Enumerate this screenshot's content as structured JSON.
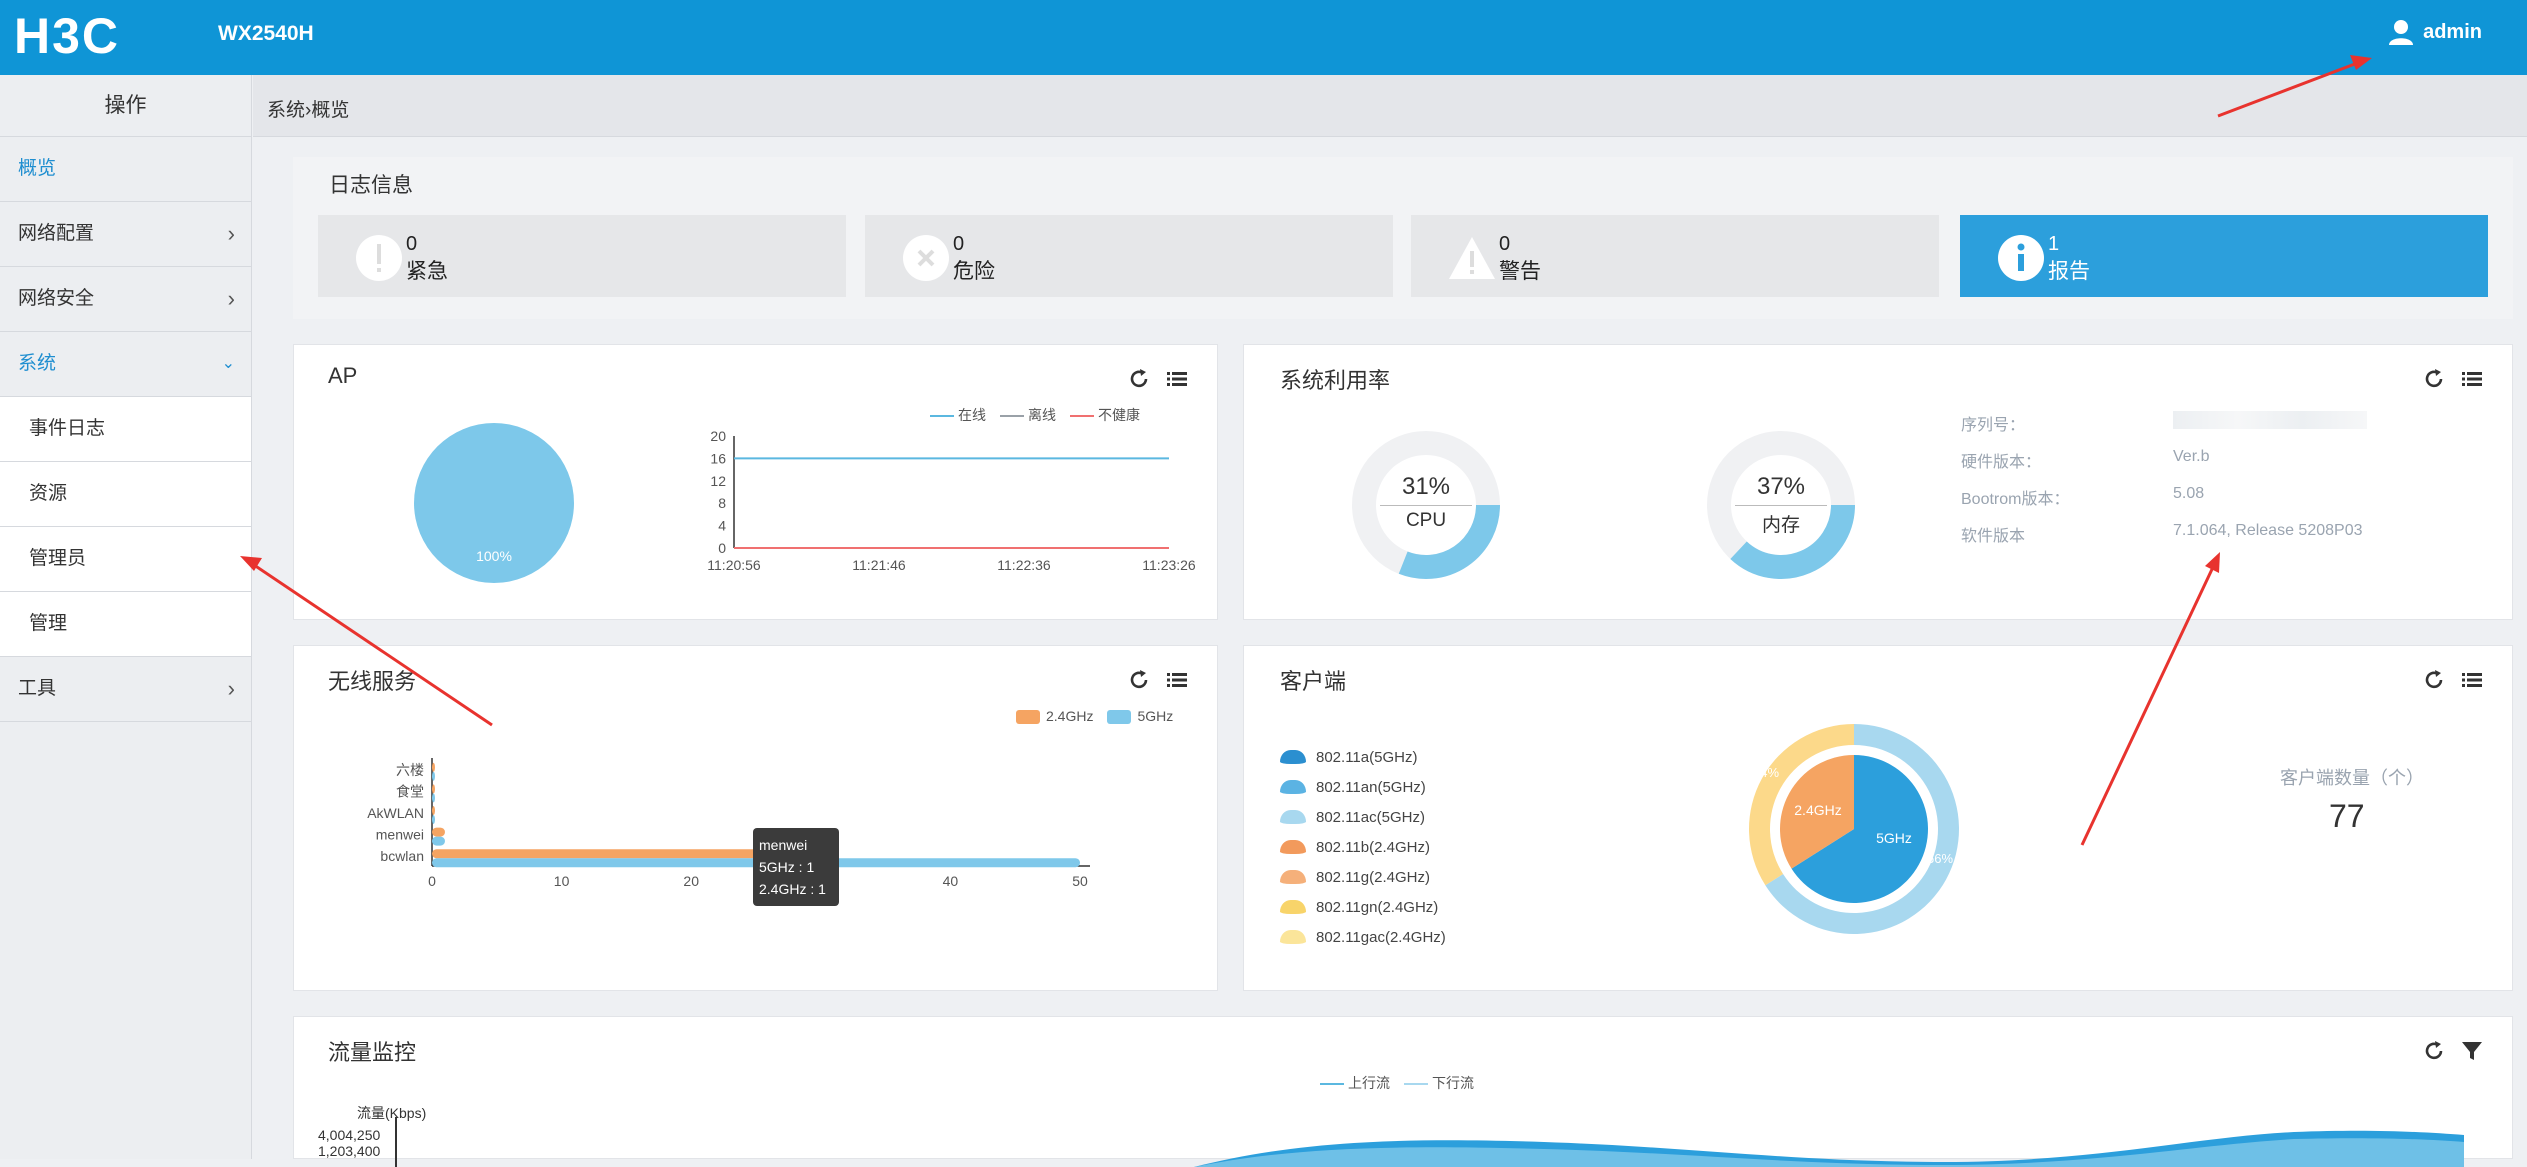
{
  "header": {
    "logo_text": "H3C",
    "model": "WX2540H",
    "user": "admin"
  },
  "sidebar": {
    "title": "操作",
    "items": [
      {
        "label": "概览"
      },
      {
        "label": "网络配置"
      },
      {
        "label": "网络安全"
      },
      {
        "label": "系统"
      },
      {
        "label": "事件日志"
      },
      {
        "label": "资源"
      },
      {
        "label": "管理员"
      },
      {
        "label": "管理"
      },
      {
        "label": "工具"
      }
    ]
  },
  "breadcrumb": {
    "parent": "系统",
    "separator": "›",
    "current": "概览"
  },
  "log": {
    "title": "日志信息",
    "cards": [
      {
        "count": "0",
        "label": "紧急"
      },
      {
        "count": "0",
        "label": "危险"
      },
      {
        "count": "0",
        "label": "警告"
      },
      {
        "count": "1",
        "label": "报告"
      }
    ]
  },
  "ap": {
    "title": "AP",
    "pie_label": "100%",
    "legend": [
      "在线",
      "离线",
      "不健康"
    ],
    "legend_colors": [
      "#5bb8e0",
      "#9aa1a8",
      "#f07070"
    ],
    "chart_data": {
      "type": "line",
      "x": [
        "11:20:56",
        "11:21:46",
        "11:22:36",
        "11:23:26"
      ],
      "yticks": [
        0,
        4,
        8,
        12,
        16,
        20
      ],
      "ylim": [
        0,
        20
      ],
      "series": [
        {
          "name": "在线",
          "values": [
            16,
            16,
            16,
            16
          ]
        },
        {
          "name": "离线",
          "values": [
            0,
            0,
            0,
            0
          ]
        },
        {
          "name": "不健康",
          "values": [
            0,
            0,
            0,
            0
          ]
        }
      ]
    }
  },
  "sysuse": {
    "title": "系统利用率",
    "cpu": {
      "pct": "31%",
      "name": "CPU",
      "value": 0.31
    },
    "mem": {
      "pct": "37%",
      "name": "内存",
      "value": 0.37
    },
    "info": [
      {
        "k": "序列号：",
        "v": ""
      },
      {
        "k": "硬件版本：",
        "v": "Ver.b"
      },
      {
        "k": "Bootrom版本：",
        "v": "5.08"
      },
      {
        "k": "软件版本",
        "v": "7.1.064, Release 5208P03"
      }
    ]
  },
  "wireless": {
    "title": "无线服务",
    "legend": [
      "2.4GHz",
      "5GHz"
    ],
    "colors": {
      "g24": "#f5a462",
      "g5": "#7fc8ea"
    },
    "chart_data": {
      "type": "bar",
      "categories": [
        "六楼",
        "食堂",
        "AkWLAN",
        "menwei",
        "bcwlan"
      ],
      "series": [
        {
          "name": "2.4GHz",
          "values": [
            0,
            0,
            0,
            1,
            27
          ]
        },
        {
          "name": "5GHz",
          "values": [
            0,
            0,
            0,
            1,
            50
          ]
        }
      ],
      "xticks": [
        0,
        10,
        20,
        30,
        40,
        50
      ],
      "xlim": [
        0,
        50
      ]
    },
    "tooltip": {
      "title": "menwei",
      "line1": "5GHz : 1",
      "line2": "2.4GHz : 1"
    }
  },
  "clients": {
    "title": "客户端",
    "legend": [
      {
        "label": "802.11a(5GHz)",
        "color": "#2b8fd0"
      },
      {
        "label": "802.11an(5GHz)",
        "color": "#5bb3e3"
      },
      {
        "label": "802.11ac(5GHz)",
        "color": "#a8d8ef"
      },
      {
        "label": "802.11b(2.4GHz)",
        "color": "#f29a5c"
      },
      {
        "label": "802.11g(2.4GHz)",
        "color": "#f5b07a"
      },
      {
        "label": "802.11gn(2.4GHz)",
        "color": "#f8d46a"
      },
      {
        "label": "802.11gac(2.4GHz)",
        "color": "#fbe59a"
      }
    ],
    "inner": {
      "g24_label": "2.4GHz",
      "g5_label": "5GHz",
      "g24": 0.34,
      "g5": 0.66
    },
    "outer": {
      "yellow_label": "34%",
      "blue_label": "66%"
    },
    "count_label": "客户端数量（个）",
    "count": "77"
  },
  "traffic": {
    "title": "流量监控",
    "legend": [
      "上行流",
      "下行流"
    ],
    "ylabel": "流量(Kbps)",
    "yticks": [
      "4,004,250",
      "1,203,400"
    ]
  }
}
